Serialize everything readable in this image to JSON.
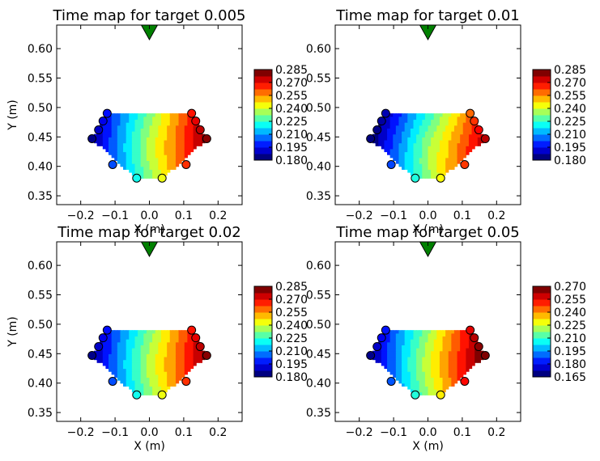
{
  "chart_data": [
    {
      "type": "heatmap",
      "title": "Time map for target 0.005",
      "xlabel": "X (m)",
      "ylabel": "Y (m)",
      "xlim": [
        -0.27,
        0.27
      ],
      "ylim": [
        0.335,
        0.64
      ],
      "xticks": [
        "−0.2",
        "−0.1",
        "0.0",
        "0.1",
        "0.2"
      ],
      "yticks": [
        "0.35",
        "0.40",
        "0.45",
        "0.50",
        "0.55",
        "0.60"
      ],
      "colorbar": {
        "min": 0.18,
        "max": 0.285,
        "ticks": [
          "0.180",
          "0.195",
          "0.210",
          "0.225",
          "0.240",
          "0.255",
          "0.270",
          "0.285"
        ]
      },
      "grid": false
    },
    {
      "type": "heatmap",
      "title": "Time map for target 0.01",
      "xlabel": "X (m)",
      "ylabel": "",
      "xlim": [
        -0.27,
        0.27
      ],
      "ylim": [
        0.335,
        0.64
      ],
      "xticks": [
        "−0.2",
        "−0.1",
        "0.0",
        "0.1",
        "0.2"
      ],
      "yticks": [
        "0.35",
        "0.40",
        "0.45",
        "0.50",
        "0.55",
        "0.60"
      ],
      "colorbar": {
        "min": 0.18,
        "max": 0.285,
        "ticks": [
          "0.180",
          "0.195",
          "0.210",
          "0.225",
          "0.240",
          "0.255",
          "0.270",
          "0.285"
        ]
      },
      "grid": false
    },
    {
      "type": "heatmap",
      "title": "Time map for target 0.02",
      "xlabel": "X (m)",
      "ylabel": "Y (m)",
      "xlim": [
        -0.27,
        0.27
      ],
      "ylim": [
        0.335,
        0.64
      ],
      "xticks": [
        "−0.2",
        "−0.1",
        "0.0",
        "0.1",
        "0.2"
      ],
      "yticks": [
        "0.35",
        "0.40",
        "0.45",
        "0.50",
        "0.55",
        "0.60"
      ],
      "colorbar": {
        "min": 0.18,
        "max": 0.285,
        "ticks": [
          "0.180",
          "0.195",
          "0.210",
          "0.225",
          "0.240",
          "0.255",
          "0.270",
          "0.285"
        ]
      },
      "grid": false
    },
    {
      "type": "heatmap",
      "title": "Time map for target 0.05",
      "xlabel": "X (m)",
      "ylabel": "",
      "xlim": [
        -0.27,
        0.27
      ],
      "ylim": [
        0.335,
        0.64
      ],
      "xticks": [
        "−0.2",
        "−0.1",
        "0.0",
        "0.1",
        "0.2"
      ],
      "yticks": [
        "0.35",
        "0.40",
        "0.45",
        "0.50",
        "0.55",
        "0.60"
      ],
      "colorbar": {
        "min": 0.165,
        "max": 0.27,
        "ticks": [
          "0.165",
          "0.180",
          "0.195",
          "0.210",
          "0.225",
          "0.240",
          "0.255",
          "0.270"
        ]
      },
      "grid": false
    }
  ],
  "sensors": {
    "points": [
      {
        "x": -0.167,
        "y": 0.447
      },
      {
        "x": -0.148,
        "y": 0.462
      },
      {
        "x": -0.135,
        "y": 0.477
      },
      {
        "x": -0.123,
        "y": 0.49
      },
      {
        "x": -0.107,
        "y": 0.403
      },
      {
        "x": -0.037,
        "y": 0.38
      },
      {
        "x": 0.037,
        "y": 0.38
      },
      {
        "x": 0.107,
        "y": 0.403
      },
      {
        "x": 0.123,
        "y": 0.49
      },
      {
        "x": 0.135,
        "y": 0.477
      },
      {
        "x": 0.148,
        "y": 0.462
      },
      {
        "x": 0.167,
        "y": 0.447
      }
    ],
    "target": {
      "x": 0.0,
      "y": 0.64
    }
  }
}
